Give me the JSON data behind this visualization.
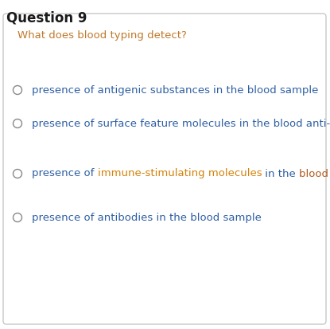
{
  "title": "Question 9",
  "question": "What does blood typing detect?",
  "question_color": "#c0792a",
  "bg_color": "#ffffff",
  "border_color": "#c8c8c8",
  "title_color": "#1a1a1a",
  "options": [
    {
      "segments": [
        {
          "text": "presence of antigenic substances ",
          "color": "#2e5fa3"
        },
        {
          "text": "in the blood sample",
          "color": "#2e5fa3"
        }
      ]
    },
    {
      "segments": [
        {
          "text": "presence of surface feature molecules in the blood anti-sera",
          "color": "#2e5fa3"
        }
      ]
    },
    {
      "segments": [
        {
          "text": "presence of ",
          "color": "#2e5fa3"
        },
        {
          "text": "immune-stimulating molecules",
          "color": "#d4820a"
        },
        {
          "text": " in the ",
          "color": "#2e5fa3"
        },
        {
          "text": "blood anti-sera",
          "color": "#b05a1a"
        }
      ]
    },
    {
      "segments": [
        {
          "text": "presence of antibodies in the blood sample",
          "color": "#2e5fa3"
        }
      ]
    }
  ],
  "font_size": 9.5,
  "title_font_size": 12,
  "question_font_size": 9.5
}
